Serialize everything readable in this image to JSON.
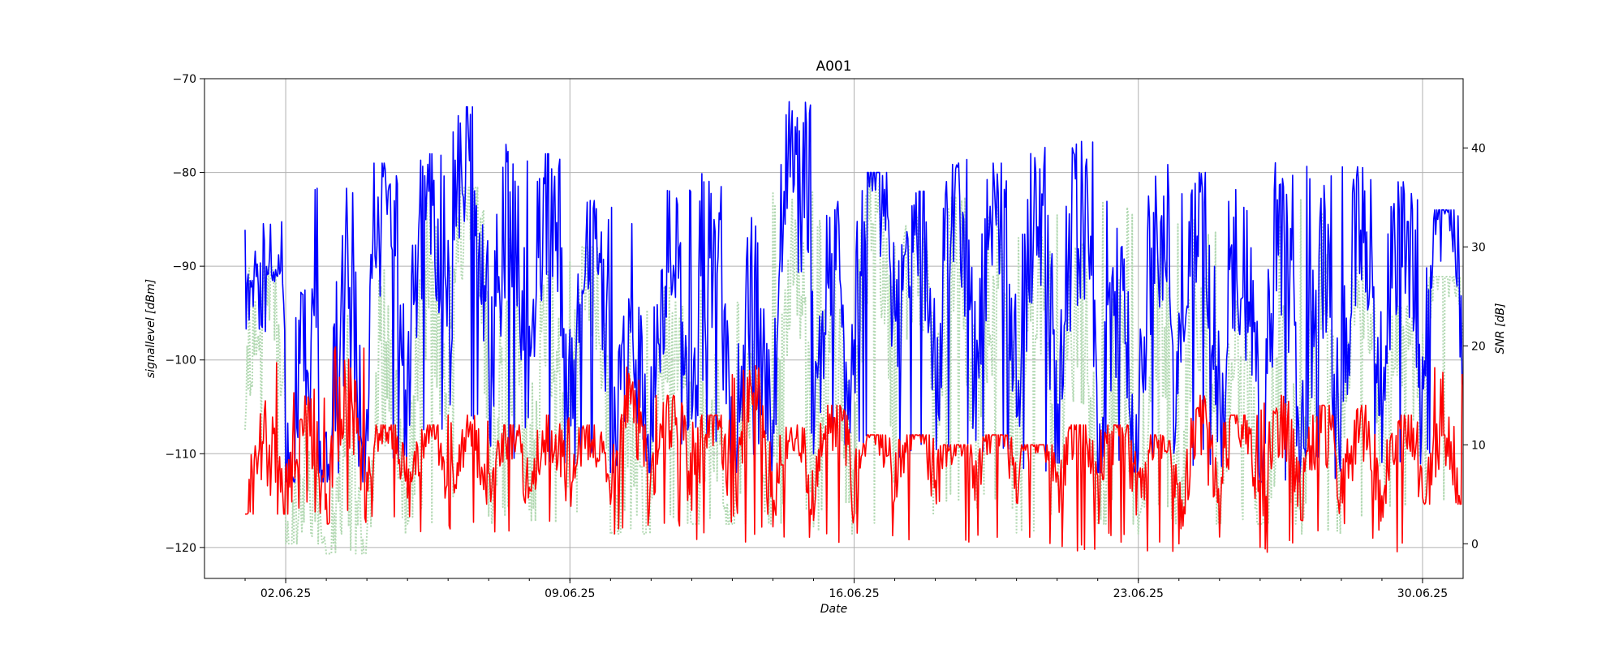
{
  "chart_data": {
    "type": "line",
    "title": "A001",
    "xlabel": "Date",
    "ylabel_left": "signallevel [dBm]",
    "ylabel_right": "SNR [dB]",
    "x_start": "2025-05-31",
    "x_end": "2025-07-01",
    "ylim_left": [
      -123.3,
      -70
    ],
    "ylim_right": [
      -3.5,
      47
    ],
    "yticks_left": [
      -120,
      -110,
      -100,
      -90,
      -80,
      -70
    ],
    "yticks_right": [
      0,
      10,
      20,
      30,
      40
    ],
    "xticks": [
      {
        "date": "2025-06-02",
        "label": "02.06.25"
      },
      {
        "date": "2025-06-09",
        "label": "09.06.25"
      },
      {
        "date": "2025-06-16",
        "label": "16.06.25"
      },
      {
        "date": "2025-06-23",
        "label": "23.06.25"
      },
      {
        "date": "2025-06-30",
        "label": "30.06.25"
      }
    ],
    "grid": true,
    "series": [
      {
        "color": "#b3d9b3",
        "style": "dotted",
        "axis": "right",
        "x": [
          "2025-06-01",
          "2025-06-02",
          "2025-06-03",
          "2025-06-04",
          "2025-06-05",
          "2025-06-06",
          "2025-06-07",
          "2025-06-08",
          "2025-06-09",
          "2025-06-10",
          "2025-06-11",
          "2025-06-12",
          "2025-06-13",
          "2025-06-14",
          "2025-06-15",
          "2025-06-16",
          "2025-06-17",
          "2025-06-18",
          "2025-06-19",
          "2025-06-20",
          "2025-06-21",
          "2025-06-22",
          "2025-06-23",
          "2025-06-24",
          "2025-06-25",
          "2025-06-26",
          "2025-06-27",
          "2025-06-28",
          "2025-06-29",
          "2025-06-30"
        ],
        "values": [
          20,
          1,
          1,
          9,
          17,
          27,
          12,
          14,
          20,
          3,
          16,
          6,
          8,
          18,
          10,
          24,
          22,
          22,
          17,
          16,
          14,
          8,
          13,
          14,
          11,
          7,
          12,
          20,
          15,
          25
        ],
        "min": [
          8,
          0,
          -1,
          1,
          2,
          3,
          2,
          2,
          2,
          1,
          2,
          2,
          2,
          2,
          1,
          2,
          2,
          2,
          2,
          1,
          2,
          2,
          1,
          2,
          2,
          2,
          1,
          2,
          2,
          2
        ],
        "max": [
          28,
          26,
          25,
          28,
          35,
          36,
          32,
          29,
          30,
          25,
          26,
          28,
          26,
          36,
          34,
          37,
          33,
          35,
          34,
          31,
          34,
          36,
          35,
          33,
          29,
          35,
          35,
          28,
          24,
          27
        ]
      },
      {
        "color": "#0000ff",
        "style": "solid",
        "axis": "left",
        "x": [
          "2025-06-01",
          "2025-06-02",
          "2025-06-03",
          "2025-06-04",
          "2025-06-05",
          "2025-06-06",
          "2025-06-07",
          "2025-06-08",
          "2025-06-09",
          "2025-06-10",
          "2025-06-11",
          "2025-06-12",
          "2025-06-13",
          "2025-06-14",
          "2025-06-15",
          "2025-06-16",
          "2025-06-17",
          "2025-06-18",
          "2025-06-19",
          "2025-06-20",
          "2025-06-21",
          "2025-06-22",
          "2025-06-23",
          "2025-06-24",
          "2025-06-25",
          "2025-06-26",
          "2025-06-27",
          "2025-06-28",
          "2025-06-29",
          "2025-06-30"
        ],
        "values": [
          -92,
          -108,
          -105,
          -94,
          -93,
          -86,
          -95,
          -92,
          -94,
          -106,
          -97,
          -99,
          -103,
          -91,
          -98,
          -88,
          -93,
          -94,
          -92,
          -95,
          -96,
          -104,
          -96,
          -94,
          -99,
          -99,
          -100,
          -95,
          -94,
          -90
        ],
        "min": [
          -97,
          -113,
          -113,
          -113,
          -110,
          -108,
          -112,
          -112,
          -112,
          -112,
          -110,
          -111,
          -112,
          -110,
          -110,
          -111,
          -111,
          -111,
          -110,
          -112,
          -111,
          -112,
          -111,
          -112,
          -112,
          -113,
          -113,
          -112,
          -112,
          -111
        ],
        "max": [
          -85,
          -80,
          -79,
          -79,
          -78,
          -73,
          -77,
          -78,
          -83,
          -83,
          -81,
          -80,
          -80,
          -72,
          -80,
          -80,
          -82,
          -78,
          -79,
          -77,
          -75,
          -80,
          -76,
          -80,
          -81,
          -78,
          -78,
          -79,
          -81,
          -84
        ]
      },
      {
        "color": "#ff0000",
        "style": "solid",
        "axis": "right",
        "x": [
          "2025-06-01",
          "2025-06-02",
          "2025-06-03",
          "2025-06-04",
          "2025-06-05",
          "2025-06-06",
          "2025-06-07",
          "2025-06-08",
          "2025-06-09",
          "2025-06-10",
          "2025-06-11",
          "2025-06-12",
          "2025-06-13",
          "2025-06-14",
          "2025-06-15",
          "2025-06-16",
          "2025-06-17",
          "2025-06-18",
          "2025-06-19",
          "2025-06-20",
          "2025-06-21",
          "2025-06-22",
          "2025-06-23",
          "2025-06-24",
          "2025-06-25",
          "2025-06-26",
          "2025-06-27",
          "2025-06-28",
          "2025-06-29",
          "2025-06-30"
        ],
        "values": [
          5,
          8,
          9,
          9,
          8,
          7,
          8,
          8,
          8,
          9,
          9,
          9,
          9,
          8,
          9,
          9,
          9,
          8,
          9,
          9,
          8,
          8,
          8,
          7,
          9,
          8,
          8,
          8,
          8,
          7
        ],
        "min": [
          3,
          3,
          2,
          2,
          1,
          1,
          1,
          2,
          1,
          1,
          1,
          0,
          0,
          0,
          0,
          0,
          0,
          0,
          0,
          0,
          -1,
          0,
          -1,
          0,
          0,
          -1,
          0,
          0,
          -1,
          4
        ],
        "max": [
          20,
          16,
          20,
          12,
          12,
          13,
          12,
          13,
          12,
          18,
          15,
          13,
          18,
          12,
          14,
          11,
          11,
          10,
          11,
          10,
          12,
          12,
          11,
          15,
          13,
          15,
          14,
          14,
          13,
          18
        ]
      }
    ]
  }
}
